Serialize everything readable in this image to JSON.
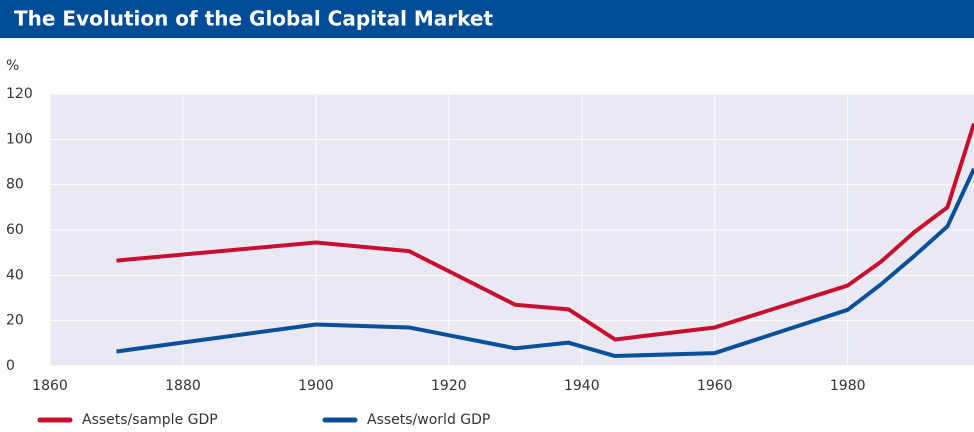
{
  "chart_data": {
    "type": "line",
    "title": "The Evolution of the Global Capital Market",
    "y_label": "%",
    "x": [
      1870,
      1900,
      1914,
      1930,
      1938,
      1945,
      1960,
      1980,
      1985,
      1990,
      1995,
      1999
    ],
    "series": [
      {
        "name": "Assets/sample GDP",
        "color": "#c8102e",
        "values": [
          46.5,
          54.5,
          50.7,
          27,
          25,
          11.7,
          17,
          35.5,
          46,
          59,
          70,
          107
        ]
      },
      {
        "name": "Assets/world GDP",
        "color": "#0a4f9c",
        "values": [
          6.4,
          18.3,
          17,
          7.8,
          10.3,
          4.4,
          5.7,
          24.8,
          36,
          48.5,
          61.6,
          87
        ]
      }
    ],
    "xlim": [
      1860,
      1999
    ],
    "xticks": [
      1860,
      1880,
      1900,
      1920,
      1940,
      1960,
      1980
    ],
    "ylim": [
      0,
      120
    ],
    "yticks": [
      0,
      20,
      40,
      60,
      80,
      100,
      120
    ],
    "grid": true
  }
}
